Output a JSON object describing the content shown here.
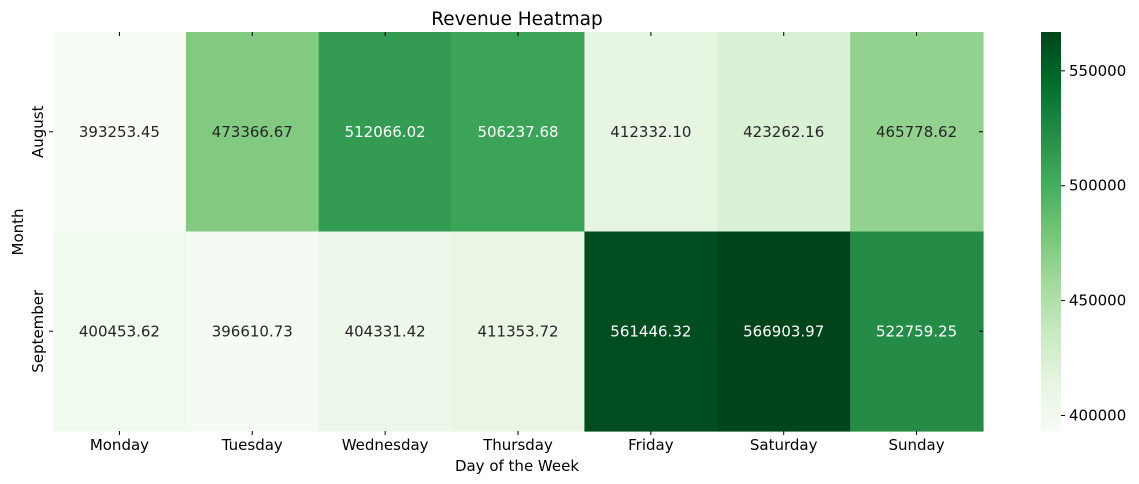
{
  "chart_data": {
    "type": "heatmap",
    "title": "Revenue Heatmap",
    "xlabel": "Day of the Week",
    "ylabel": "Month",
    "x": [
      "Monday",
      "Tuesday",
      "Wednesday",
      "Thursday",
      "Friday",
      "Saturday",
      "Sunday"
    ],
    "y": [
      "August",
      "September"
    ],
    "values": [
      [
        393253.45,
        473366.67,
        512066.02,
        506237.68,
        412332.1,
        423262.16,
        465778.62
      ],
      [
        400453.62,
        396610.73,
        404331.42,
        411353.72,
        561446.32,
        566903.97,
        522759.25
      ]
    ],
    "cell_labels": [
      [
        "393253.45",
        "473366.67",
        "512066.02",
        "506237.68",
        "412332.10",
        "423262.16",
        "465778.62"
      ],
      [
        "400453.62",
        "396610.73",
        "404331.42",
        "411353.72",
        "561446.32",
        "566903.97",
        "522759.25"
      ]
    ],
    "colormap": "Greens",
    "color_range": [
      393253.45,
      566903.97
    ],
    "colorbar_ticks": [
      400000,
      450000,
      500000,
      550000
    ],
    "colorbar_tick_labels": [
      "400000",
      "450000",
      "500000",
      "550000"
    ],
    "text_color_dark": "#262626",
    "text_color_light": "#ffffff"
  }
}
